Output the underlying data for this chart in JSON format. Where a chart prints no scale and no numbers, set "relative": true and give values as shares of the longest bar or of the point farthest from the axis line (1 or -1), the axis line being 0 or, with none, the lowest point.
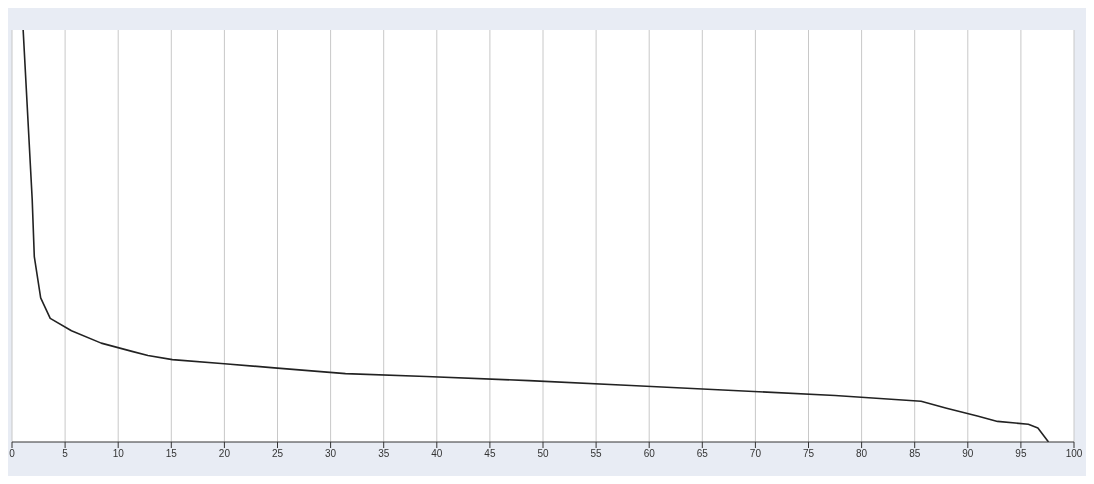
{
  "chart_data": {
    "type": "line",
    "relative": true,
    "x": [
      1.05,
      1.9,
      2.1,
      2.7,
      3.6,
      5.6,
      8.4,
      11.3,
      12.8,
      15.1,
      20,
      24.7,
      31.4,
      39,
      48.7,
      58.3,
      67.9,
      77.5,
      85.6,
      88,
      90.9,
      92.8,
      95.7,
      96.6,
      97.6
    ],
    "series": [
      {
        "color": "#222222",
        "values": [
          1.0,
          0.59,
          0.45,
          0.35,
          0.3,
          0.27,
          0.24,
          0.22,
          0.21,
          0.2,
          0.19,
          0.18,
          0.166,
          0.159,
          0.149,
          0.137,
          0.125,
          0.113,
          0.099,
          0.082,
          0.063,
          0.05,
          0.043,
          0.034,
          0.0
        ]
      }
    ],
    "xlim": [
      0,
      100
    ],
    "xticks": [
      0,
      5,
      10,
      15,
      20,
      25,
      30,
      35,
      40,
      45,
      50,
      55,
      60,
      65,
      70,
      75,
      80,
      85,
      90,
      95,
      100
    ],
    "grid": "x",
    "marker": "none",
    "line_style": "solid"
  }
}
